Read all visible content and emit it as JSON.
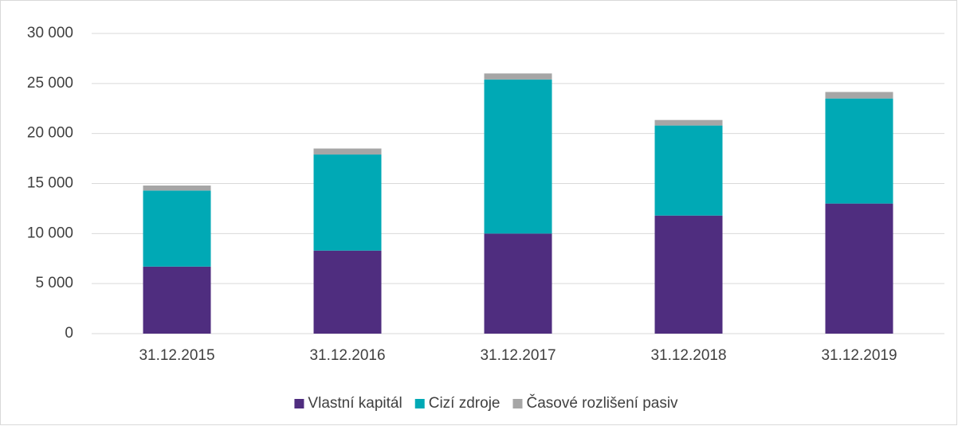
{
  "chart_data": {
    "type": "stacked_bar",
    "categories": [
      "31.12.2015",
      "31.12.2016",
      "31.12.2017",
      "31.12.2018",
      "31.12.2019"
    ],
    "series": [
      {
        "name": "Vlastní kapitál",
        "color": "#4f2d7f",
        "values": [
          6700,
          8300,
          10000,
          11800,
          13000
        ]
      },
      {
        "name": "Cizí zdroje",
        "color": "#00a9b5",
        "values": [
          7600,
          9600,
          15400,
          9000,
          10500
        ]
      },
      {
        "name": "Časové rozlišení pasiv",
        "color": "#a6a6a6",
        "values": [
          500,
          600,
          600,
          550,
          650
        ]
      }
    ],
    "ylim": [
      0,
      30000
    ],
    "yticks": [
      0,
      {
        "value": 5000,
        "label": "5 000"
      },
      {
        "value": 10000,
        "label": "10 000"
      },
      {
        "value": 15000,
        "label": "15 000"
      },
      {
        "value": 20000,
        "label": "20 000"
      },
      {
        "value": 25000,
        "label": "25 000"
      },
      {
        "value": 30000,
        "label": "30 000"
      }
    ],
    "grid": true,
    "legend": "bottom"
  }
}
